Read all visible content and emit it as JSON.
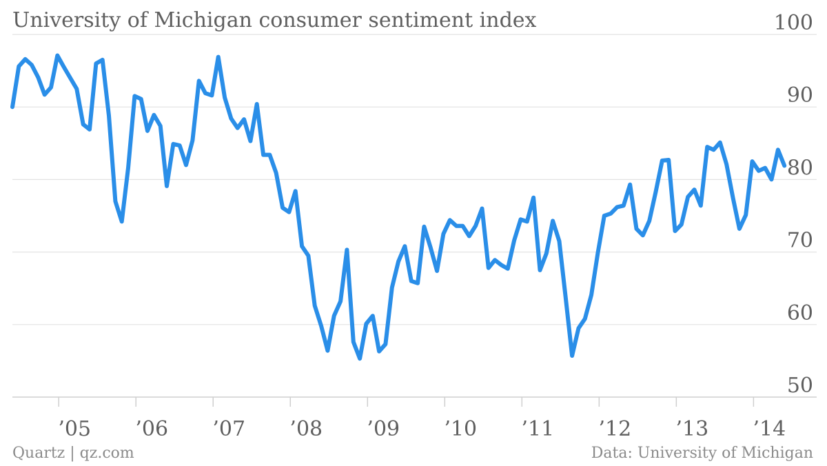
{
  "chart_data": {
    "type": "line",
    "title": "University of Michigan consumer sentiment index",
    "xlabel": "",
    "ylabel": "",
    "ylim": [
      50,
      100
    ],
    "y_ticks": [
      50,
      60,
      70,
      80,
      90,
      100
    ],
    "x_ticks": [
      {
        "label": "’05",
        "x": 2005.0
      },
      {
        "label": "’06",
        "x": 2006.0
      },
      {
        "label": "’07",
        "x": 2007.0
      },
      {
        "label": "’08",
        "x": 2008.0
      },
      {
        "label": "’09",
        "x": 2009.0
      },
      {
        "label": "’10",
        "x": 2010.0
      },
      {
        "label": "’11",
        "x": 2011.0
      },
      {
        "label": "’12",
        "x": 2012.0
      },
      {
        "label": "’13",
        "x": 2013.0
      },
      {
        "label": "’14",
        "x": 2014.0
      }
    ],
    "grid": true,
    "line_color": "#2a8ee8",
    "series": [
      {
        "values": [
          90.0,
          95.6,
          96.6,
          95.8,
          94.1,
          91.7,
          92.7,
          97.1,
          95.5,
          94.0,
          92.5,
          87.6,
          86.9,
          96.0,
          96.5,
          88.8,
          77.0,
          74.2,
          81.6,
          91.5,
          91.1,
          86.7,
          88.9,
          87.4,
          79.1,
          84.9,
          84.7,
          82.0,
          85.4,
          93.6,
          91.9,
          91.6,
          96.9,
          91.3,
          88.4,
          87.1,
          88.3,
          85.3,
          90.4,
          83.4,
          83.4,
          80.9,
          76.1,
          75.5,
          78.4,
          70.8,
          69.5,
          62.6,
          59.8,
          56.4,
          61.2,
          63.2,
          70.3,
          57.6,
          55.3,
          60.1,
          61.2,
          56.3,
          57.3,
          65.1,
          68.7,
          70.8,
          66.0,
          65.7,
          73.5,
          70.6,
          67.4,
          72.5,
          74.4,
          73.6,
          73.6,
          72.2,
          73.6,
          76.0,
          67.8,
          68.9,
          68.2,
          67.7,
          71.6,
          74.5,
          74.2,
          77.5,
          67.5,
          69.8,
          74.3,
          71.5,
          63.7,
          55.7,
          59.5,
          60.8,
          64.1,
          69.9,
          75.0,
          75.3,
          76.2,
          76.4,
          79.3,
          73.2,
          72.3,
          74.3,
          78.3,
          82.6,
          82.7,
          72.9,
          73.8,
          77.6,
          78.6,
          76.4,
          84.5,
          84.1,
          85.1,
          82.1,
          77.5,
          73.2,
          75.1,
          82.5,
          81.2,
          81.6,
          80.0,
          84.1,
          81.9
        ],
        "x_start": 2004.4,
        "x_step": 0.0833333
      }
    ]
  },
  "footer": {
    "source_left": "Quartz | qz.com",
    "source_right": "Data: University of Michigan"
  }
}
